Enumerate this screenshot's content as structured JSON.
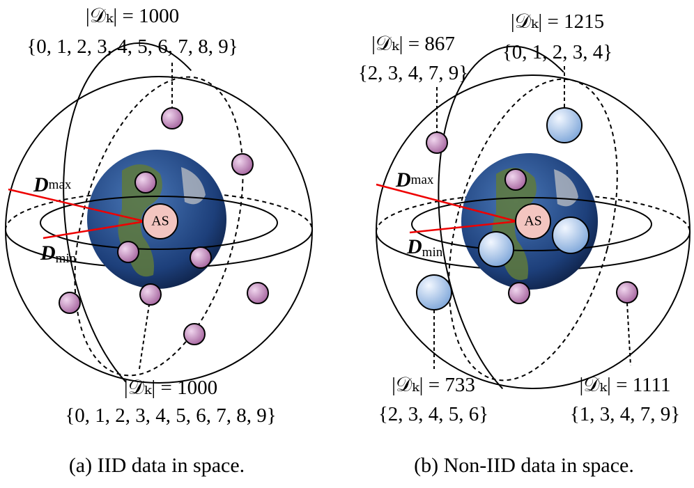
{
  "panel_a": {
    "caption": "(a) IID data in space.",
    "server": "AS",
    "d_max": {
      "symbol": "D",
      "sub": "max"
    },
    "d_min": {
      "symbol": "D",
      "sub": "min"
    },
    "clients": [
      {
        "size": "|𝒟ₖ| = 1000",
        "classes": "{0, 1, 2, 3, 4, 5, 6, 7, 8, 9}"
      },
      {
        "size": "|𝒟ₖ| = 1000",
        "classes": "{0, 1, 2, 3, 4, 5, 6, 7, 8, 9}"
      }
    ]
  },
  "panel_b": {
    "caption": "(b) Non-IID data in space.",
    "server": "AS",
    "d_max": {
      "symbol": "D",
      "sub": "max"
    },
    "d_min": {
      "symbol": "D",
      "sub": "min"
    },
    "clients": [
      {
        "size": "|𝒟ₖ| = 867",
        "classes": "{2, 3, 4, 7, 9}"
      },
      {
        "size": "|𝒟ₖ| = 1215",
        "classes": "{0, 1, 2, 3, 4}"
      },
      {
        "size": "|𝒟ₖ| = 733",
        "classes": "{2, 3, 4, 5, 6}"
      },
      {
        "size": "|𝒟ₖ| = 1111",
        "classes": "{1, 3, 4, 7, 9}"
      }
    ]
  }
}
